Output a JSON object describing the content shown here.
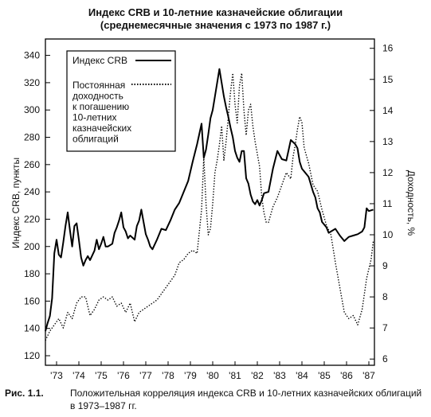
{
  "title": {
    "line1": "Индекс CRB и 10-летние казначейские облигации",
    "line2": "(среднемесячные значения с 1973 по 1987 г.)"
  },
  "caption": {
    "figure_label": "Рис. 1.1.",
    "text": "Положительная корреляция индекса CRB и 10-летних казначейских облигаций в 1973–1987 гг."
  },
  "colors": {
    "crb": "#000000",
    "bond": "#000000",
    "axis": "#000000"
  },
  "chart_data": {
    "type": "line",
    "ylabel_left": "Индекс CRB, пункты",
    "ylabel_right": "Доходность, %",
    "x_ticks": [
      "'73",
      "'74",
      "'75",
      "'76",
      "'77",
      "'78",
      "'79",
      "'80",
      "'81",
      "'82",
      "'83",
      "'84",
      "'85",
      "'86",
      "'87"
    ],
    "x_range": [
      1973.0,
      1987.75
    ],
    "y_left_range": [
      113,
      352
    ],
    "y_left_ticks": [
      120,
      140,
      160,
      180,
      200,
      220,
      240,
      260,
      280,
      300,
      320,
      340
    ],
    "y_right_range": [
      5.8,
      16.3
    ],
    "y_right_ticks": [
      6,
      7,
      8,
      9,
      10,
      11,
      12,
      13,
      14,
      15,
      16
    ],
    "legend_position": "top-left",
    "series": [
      {
        "name": "Индекс CRB",
        "axis": "left",
        "style": "solid",
        "x": [
          1973.0,
          1973.1,
          1973.2,
          1973.3,
          1973.4,
          1973.5,
          1973.6,
          1973.7,
          1973.8,
          1973.9,
          1974.0,
          1974.1,
          1974.2,
          1974.3,
          1974.4,
          1974.5,
          1974.6,
          1974.7,
          1974.8,
          1974.9,
          1975.0,
          1975.2,
          1975.3,
          1975.4,
          1975.5,
          1975.6,
          1975.7,
          1975.8,
          1976.0,
          1976.1,
          1976.2,
          1976.3,
          1976.4,
          1976.5,
          1976.6,
          1976.7,
          1976.8,
          1977.0,
          1977.1,
          1977.2,
          1977.3,
          1977.4,
          1977.5,
          1977.6,
          1977.7,
          1977.8,
          1978.0,
          1978.2,
          1978.4,
          1978.6,
          1978.8,
          1979.0,
          1979.2,
          1979.4,
          1979.6,
          1979.8,
          1980.0,
          1980.1,
          1980.2,
          1980.3,
          1980.4,
          1980.5,
          1980.6,
          1980.7,
          1980.8,
          1980.9,
          1981.0,
          1981.1,
          1981.2,
          1981.3,
          1981.4,
          1981.5,
          1981.6,
          1981.7,
          1981.8,
          1981.9,
          1982.0,
          1982.1,
          1982.2,
          1982.3,
          1982.4,
          1982.5,
          1982.6,
          1982.7,
          1982.8,
          1983.0,
          1983.2,
          1983.4,
          1983.6,
          1983.8,
          1984.0,
          1984.2,
          1984.3,
          1984.4,
          1984.5,
          1984.6,
          1984.8,
          1985.0,
          1985.1,
          1985.2,
          1985.3,
          1985.4,
          1985.5,
          1985.6,
          1985.7,
          1985.8,
          1986.0,
          1986.2,
          1986.4,
          1986.6,
          1986.8,
          1987.0,
          1987.2,
          1987.3,
          1987.4,
          1987.5,
          1987.7
        ],
        "values": [
          138,
          144,
          149,
          162,
          195,
          205,
          194,
          192,
          203,
          215,
          225,
          212,
          200,
          215,
          217,
          205,
          192,
          186,
          190,
          193,
          190,
          197,
          205,
          198,
          202,
          207,
          200,
          200,
          202,
          210,
          214,
          219,
          225,
          214,
          211,
          206,
          208,
          205,
          215,
          219,
          227,
          218,
          209,
          205,
          200,
          198,
          205,
          213,
          212,
          219,
          227,
          232,
          240,
          248,
          262,
          275,
          290,
          265,
          271,
          282,
          294,
          300,
          310,
          320,
          330,
          320,
          310,
          302,
          295,
          287,
          280,
          270,
          265,
          262,
          270,
          270,
          250,
          246,
          238,
          233,
          231,
          234,
          230,
          234,
          239,
          240,
          257,
          270,
          264,
          263,
          278,
          275,
          272,
          262,
          257,
          255,
          251,
          240,
          236,
          228,
          225,
          218,
          216,
          214,
          210,
          211,
          213,
          208,
          204,
          207,
          208,
          209,
          211,
          214,
          228,
          226,
          227
        ]
      },
      {
        "name": "Постоянная доходность к погашению 10-летних казначейских облигаций",
        "axis": "right",
        "style": "dotted",
        "x": [
          1973.0,
          1973.2,
          1973.4,
          1973.6,
          1973.8,
          1974.0,
          1974.2,
          1974.4,
          1974.6,
          1974.8,
          1975.0,
          1975.2,
          1975.4,
          1975.6,
          1975.8,
          1976.0,
          1976.2,
          1976.4,
          1976.6,
          1976.8,
          1977.0,
          1977.2,
          1977.4,
          1977.6,
          1977.8,
          1978.0,
          1978.2,
          1978.4,
          1978.6,
          1978.8,
          1979.0,
          1979.2,
          1979.4,
          1979.6,
          1979.8,
          1980.0,
          1980.1,
          1980.2,
          1980.3,
          1980.4,
          1980.5,
          1980.6,
          1980.7,
          1980.8,
          1980.9,
          1981.0,
          1981.1,
          1981.2,
          1981.3,
          1981.4,
          1981.5,
          1981.6,
          1981.7,
          1981.8,
          1981.9,
          1982.0,
          1982.1,
          1982.2,
          1982.3,
          1982.4,
          1982.5,
          1982.6,
          1982.7,
          1982.8,
          1982.9,
          1983.0,
          1983.2,
          1983.4,
          1983.6,
          1983.8,
          1984.0,
          1984.1,
          1984.2,
          1984.3,
          1984.4,
          1984.5,
          1984.6,
          1984.8,
          1985.0,
          1985.2,
          1985.4,
          1985.6,
          1985.8,
          1986.0,
          1986.2,
          1986.4,
          1986.6,
          1986.8,
          1987.0,
          1987.2,
          1987.4,
          1987.6,
          1987.7
        ],
        "values": [
          6.6,
          6.9,
          7.1,
          7.3,
          7.0,
          7.5,
          7.3,
          7.8,
          8.0,
          8.0,
          7.4,
          7.6,
          7.9,
          8.0,
          7.9,
          8.0,
          7.7,
          7.8,
          7.5,
          7.8,
          7.2,
          7.5,
          7.6,
          7.7,
          7.8,
          7.9,
          8.1,
          8.3,
          8.5,
          8.7,
          9.1,
          9.2,
          9.4,
          9.5,
          9.4,
          10.8,
          12.5,
          11.0,
          10.0,
          10.2,
          11.0,
          12.0,
          12.4,
          12.9,
          13.5,
          12.4,
          13.0,
          13.8,
          14.6,
          15.2,
          14.2,
          13.6,
          14.8,
          15.2,
          14.0,
          13.2,
          14.0,
          14.2,
          13.5,
          13.0,
          12.6,
          12.2,
          11.2,
          10.7,
          10.4,
          10.4,
          10.9,
          11.2,
          11.6,
          12.0,
          11.8,
          12.5,
          12.9,
          13.4,
          13.8,
          13.6,
          12.8,
          12.3,
          11.6,
          11.4,
          10.8,
          10.3,
          10.0,
          9.1,
          8.3,
          7.5,
          7.3,
          7.4,
          7.1,
          7.6,
          8.6,
          9.2,
          9.8
        ]
      }
    ]
  }
}
